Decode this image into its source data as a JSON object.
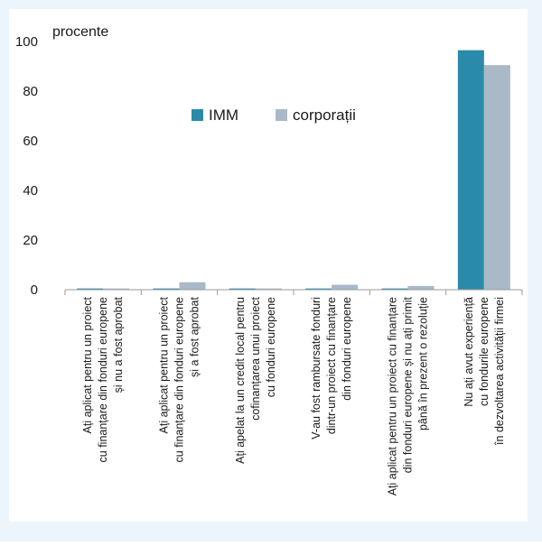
{
  "chart_data": {
    "type": "bar",
    "ylabel": "procente",
    "xlabel": "",
    "ylim": [
      0,
      100
    ],
    "yticks": [
      0,
      20,
      40,
      60,
      80,
      100
    ],
    "grid": false,
    "legend_position": "center",
    "categories": [
      [
        "Ați aplicat pentru un proiect",
        "cu finanțare din fonduri europene",
        "și nu a fost aprobat"
      ],
      [
        "Ați aplicat pentru un proiect",
        "cu finanțare din fonduri europene",
        "și a fost aprobat"
      ],
      [
        "Ați apelat la un credit local pentru",
        "cofinanțarea unui proiect",
        "cu fonduri europene"
      ],
      [
        "V-au fost rambursate fonduri",
        "dintr-un proiect cu finanțare",
        "din fonduri europene"
      ],
      [
        "Ați aplicat pentru un proiect cu finanțare",
        "din fonduri europene și nu ați primit",
        "până în prezent o rezoluție"
      ],
      [
        "Nu ați avut experiență",
        "cu fondurile europene",
        "în dezvoltarea activității firmei"
      ]
    ],
    "series": [
      {
        "name": "IMM",
        "color": "#2a8aaa",
        "values": [
          0.5,
          0.5,
          0.5,
          0.5,
          0.5,
          96.5
        ]
      },
      {
        "name": "corporații",
        "color": "#a9b9c8",
        "values": [
          0.5,
          3,
          0.5,
          2,
          1.5,
          90.5
        ]
      }
    ]
  },
  "colors": {
    "panel_background": "#ebf5fb",
    "plot_background": "#ffffff",
    "axis": "#1a1a1a"
  }
}
